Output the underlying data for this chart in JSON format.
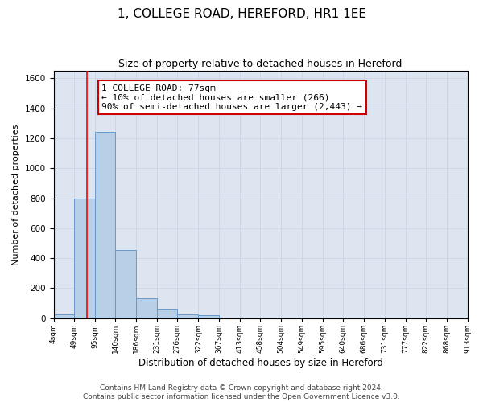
{
  "title": "1, COLLEGE ROAD, HEREFORD, HR1 1EE",
  "subtitle": "Size of property relative to detached houses in Hereford",
  "xlabel": "Distribution of detached houses by size in Hereford",
  "ylabel": "Number of detached properties",
  "bin_edges": [
    4,
    49,
    95,
    140,
    186,
    231,
    276,
    322,
    367,
    413,
    458,
    504,
    549,
    595,
    640,
    686,
    731,
    777,
    822,
    868,
    913
  ],
  "bar_heights": [
    25,
    800,
    1240,
    455,
    130,
    65,
    25,
    20,
    0,
    0,
    0,
    0,
    0,
    0,
    0,
    0,
    0,
    0,
    0,
    0
  ],
  "bar_fill_color": "#b8cfe8",
  "bar_edge_color": "#6699cc",
  "red_line_x": 77,
  "annotation_line1": "1 COLLEGE ROAD: 77sqm",
  "annotation_line2": "← 10% of detached houses are smaller (266)",
  "annotation_line3": "90% of semi-detached houses are larger (2,443) →",
  "annotation_box_color": "#ffffff",
  "annotation_box_edge_color": "#cc0000",
  "ylim": [
    0,
    1650
  ],
  "yticks": [
    0,
    200,
    400,
    600,
    800,
    1000,
    1200,
    1400,
    1600
  ],
  "grid_color": "#cdd5e5",
  "background_color": "#dde5f0",
  "footer_line1": "Contains HM Land Registry data © Crown copyright and database right 2024.",
  "footer_line2": "Contains public sector information licensed under the Open Government Licence v3.0.",
  "title_fontsize": 11,
  "subtitle_fontsize": 9,
  "annotation_fontsize": 8,
  "footer_fontsize": 6.5,
  "ylabel_fontsize": 8,
  "xlabel_fontsize": 8.5
}
